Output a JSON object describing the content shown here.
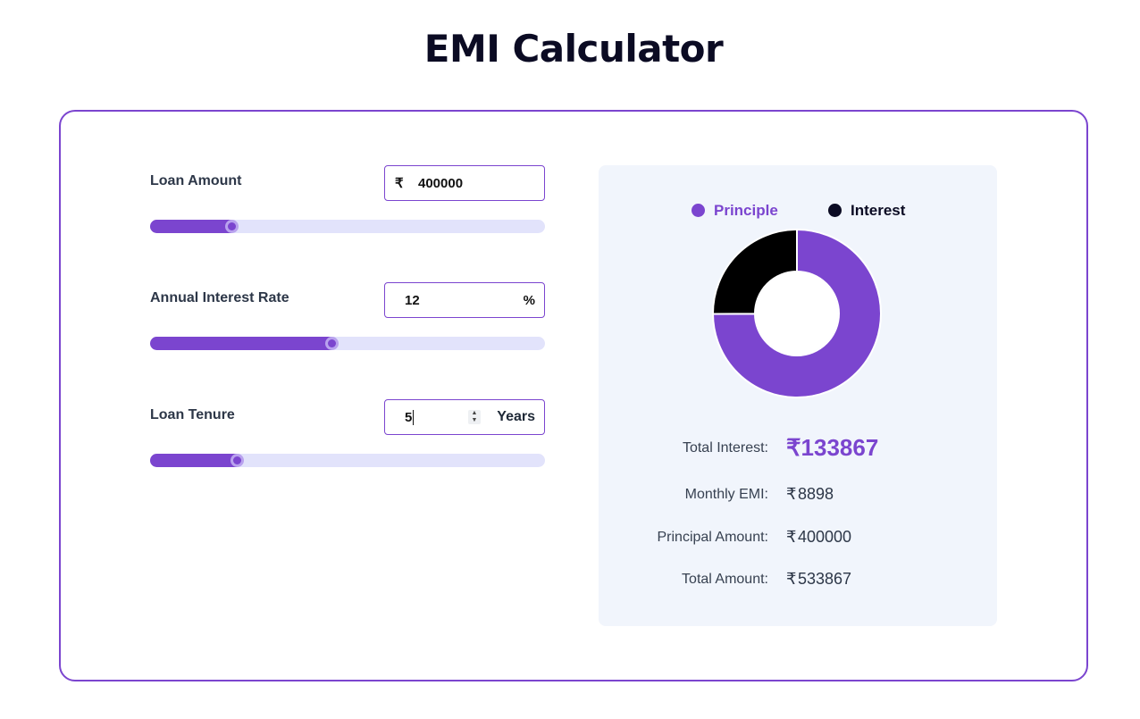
{
  "page": {
    "title": "EMI Calculator"
  },
  "currency_symbol": "₹",
  "loan_amount": {
    "label": "Loan Amount",
    "value": "400000",
    "slider_fraction": 0.205
  },
  "interest_rate": {
    "label": "Annual Interest Rate",
    "value": "12",
    "suffix": "%",
    "slider_fraction": 0.46
  },
  "tenure": {
    "label": "Loan Tenure",
    "value": "5",
    "suffix": "Years",
    "slider_fraction": 0.22
  },
  "legend": {
    "principle": "Principle",
    "interest": "Interest"
  },
  "chart_data": {
    "type": "pie",
    "categories": [
      "Principle",
      "Interest"
    ],
    "values": [
      400000,
      133867
    ],
    "colors": [
      "#7b45cf",
      "#000000"
    ],
    "donut": true
  },
  "summary": {
    "total_interest": {
      "label": "Total Interest:",
      "value": "133867"
    },
    "monthly_emi": {
      "label": "Monthly EMI:",
      "value": "8898"
    },
    "principal_amount": {
      "label": "Principal Amount:",
      "value": "400000"
    },
    "total_amount": {
      "label": "Total Amount:",
      "value": "533867"
    }
  },
  "colors": {
    "accent": "#7b45cf",
    "track": "#e2e3fb",
    "panel": "#f1f5fc",
    "title": "#0b0b23"
  }
}
